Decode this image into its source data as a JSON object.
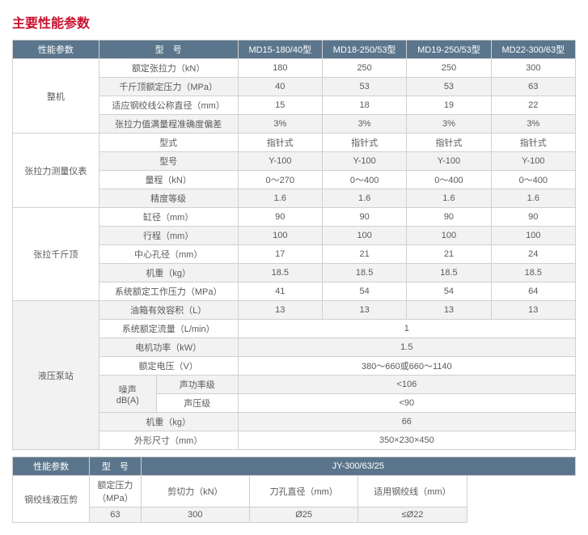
{
  "title": "主要性能参数",
  "headers": {
    "perf": "性能参数",
    "model_label": "型　号",
    "models": [
      "MD15-180/40型",
      "MD18-250/53型",
      "MD19-250/53型",
      "MD22-300/63型"
    ]
  },
  "sections": [
    {
      "group": "整机",
      "rows": [
        {
          "label": "额定张拉力（kN）",
          "vals": [
            "180",
            "250",
            "250",
            "300"
          ],
          "alt": false
        },
        {
          "label": "千斤顶额定压力（MPa）",
          "vals": [
            "40",
            "53",
            "53",
            "63"
          ],
          "alt": true
        },
        {
          "label": "适应钢绞线公称直径（mm）",
          "vals": [
            "15",
            "18",
            "19",
            "22"
          ],
          "alt": false
        },
        {
          "label": "张拉力值满量程准确度偏差",
          "vals": [
            "3%",
            "3%",
            "3%",
            "3%"
          ],
          "alt": true
        }
      ]
    },
    {
      "group": "张拉力测量仪表",
      "rows": [
        {
          "label": "型式",
          "vals": [
            "指针式",
            "指针式",
            "指针式",
            "指针式"
          ],
          "alt": false
        },
        {
          "label": "型号",
          "vals": [
            "Y-100",
            "Y-100",
            "Y-100",
            "Y-100"
          ],
          "alt": true
        },
        {
          "label": "量程（kN）",
          "vals": [
            "0～270",
            "0～400",
            "0～400",
            "0～400"
          ],
          "alt": false
        },
        {
          "label": "精度等级",
          "vals": [
            "1.6",
            "1.6",
            "1.6",
            "1.6"
          ],
          "alt": true
        }
      ]
    },
    {
      "group": "张拉千斤顶",
      "rows": [
        {
          "label": "缸径（mm）",
          "vals": [
            "90",
            "90",
            "90",
            "90"
          ],
          "alt": false
        },
        {
          "label": "行程（mm）",
          "vals": [
            "100",
            "100",
            "100",
            "100"
          ],
          "alt": true
        },
        {
          "label": "中心孔径（mm）",
          "vals": [
            "17",
            "21",
            "21",
            "24"
          ],
          "alt": false
        },
        {
          "label": "机重（kg）",
          "vals": [
            "18.5",
            "18.5",
            "18.5",
            "18.5"
          ],
          "alt": true
        },
        {
          "label": "系统额定工作压力（MPa）",
          "vals": [
            "41",
            "54",
            "54",
            "64"
          ],
          "alt": false
        }
      ]
    }
  ],
  "pump": {
    "group": "液压泵站",
    "rows": [
      {
        "label": "油箱有效容积（L）",
        "vals": [
          "13",
          "13",
          "13",
          "13"
        ],
        "alt": true,
        "span": false
      },
      {
        "label": "系统额定流量（L/min）",
        "val": "1",
        "alt": false,
        "span": true
      },
      {
        "label": "电机功率（kW）",
        "val": "1.5",
        "alt": true,
        "span": true
      },
      {
        "label": "额定电压（V）",
        "val": "380～660或660～1140",
        "alt": false,
        "span": true
      }
    ],
    "noise": {
      "label": "噪声\ndB(A)",
      "sub1": {
        "label": "声功率级",
        "val": "<106",
        "alt": true
      },
      "sub2": {
        "label": "声压级",
        "val": "<90",
        "alt": false
      }
    },
    "tail": [
      {
        "label": "机重（kg）",
        "val": "66",
        "alt": true
      },
      {
        "label": "外形尺寸（mm）",
        "val": "350×230×450",
        "alt": false
      }
    ]
  },
  "shear": {
    "header_model": "JY-300/63/25",
    "group": "钢绞线液压剪",
    "cols": [
      "额定压力（MPa）",
      "剪切力（kN）",
      "刀孔直径（mm）",
      "适用钢绞线（mm）"
    ],
    "vals": [
      "63",
      "300",
      "Ø25",
      "≤Ø22"
    ]
  }
}
